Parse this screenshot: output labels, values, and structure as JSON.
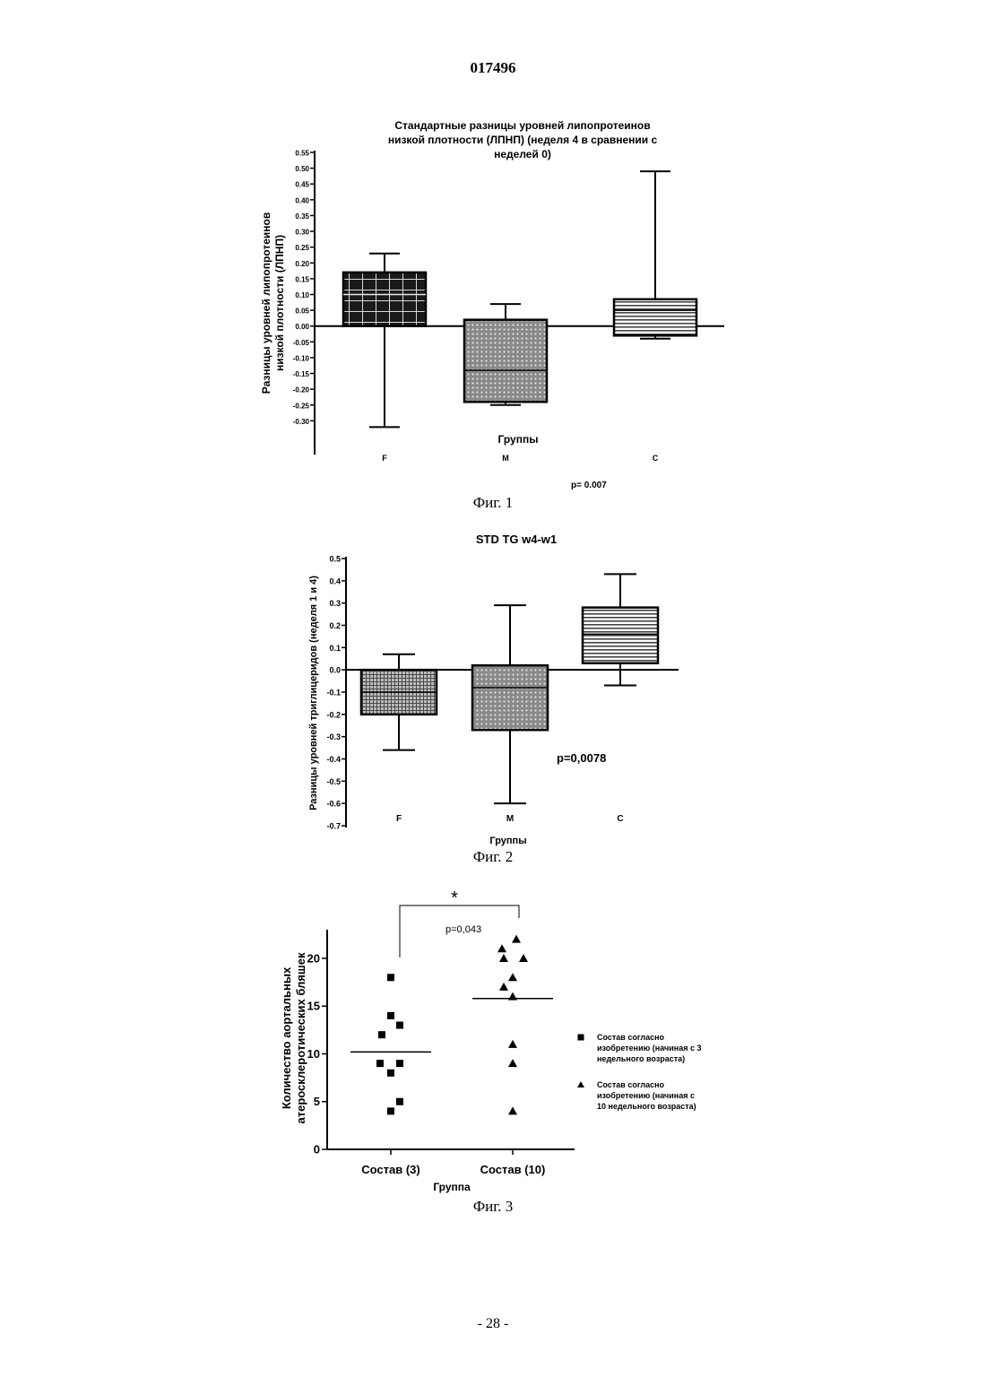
{
  "document": {
    "number": "017496",
    "page_number": "- 28 -"
  },
  "captions": {
    "fig1": "Фиг. 1",
    "fig2": "Фиг. 2",
    "fig3": "Фиг. 3"
  },
  "chart_data": [
    {
      "type": "box",
      "title": [
        "Стандартные разницы уровней липопротеинов",
        "низкой плотности (ЛПНП) (неделя 4 в сравнении с",
        "неделей 0)"
      ],
      "ylabel": [
        "Разницы уровней липопротеинов",
        "низкой плотности (ЛПНП)"
      ],
      "xlabel": "Группы",
      "ylim": [
        -0.35,
        0.55
      ],
      "yticks": [
        "0.55",
        "0.50",
        "0.45",
        "0.40",
        "0.35",
        "0.30",
        "0.25",
        "0.20",
        "0.15",
        "0.10",
        "0.05",
        "0.00",
        "-0.05",
        "-0.10",
        "-0.15",
        "-0.20",
        "-0.25",
        "-0.30"
      ],
      "categories": [
        "F",
        "M",
        "C"
      ],
      "boxes": [
        {
          "group": "F",
          "min": -0.32,
          "q1": 0.0,
          "median": 0.1,
          "q3": 0.17,
          "max": 0.23,
          "pattern": "dark-grid"
        },
        {
          "group": "M",
          "min": -0.25,
          "q1": -0.24,
          "median": -0.14,
          "q3": 0.02,
          "max": 0.07,
          "pattern": "dots"
        },
        {
          "group": "C",
          "min": -0.04,
          "q1": -0.03,
          "median": 0.05,
          "q3": 0.085,
          "max": 0.49,
          "pattern": "hlines"
        }
      ],
      "annotation": "p= 0.007"
    },
    {
      "type": "box",
      "title": [
        "STD TG w4-w1"
      ],
      "ylabel": [
        "Разницы уровней триглицеридов (неделя 1 и 4)"
      ],
      "xlabel": "Группы",
      "ylim": [
        -0.7,
        0.5
      ],
      "yticks": [
        "0.5",
        "0.4",
        "0.3",
        "0.2",
        "0.1",
        "0.0",
        "-0.1",
        "-0.2",
        "-0.3",
        "-0.4",
        "-0.5",
        "-0.6",
        "-0.7"
      ],
      "categories": [
        "F",
        "M",
        "C"
      ],
      "boxes": [
        {
          "group": "F",
          "min": -0.36,
          "q1": -0.2,
          "median": -0.1,
          "q3": 0.0,
          "max": 0.07,
          "pattern": "dense-grid"
        },
        {
          "group": "M",
          "min": -0.6,
          "q1": -0.27,
          "median": -0.08,
          "q3": 0.02,
          "max": 0.29,
          "pattern": "dots"
        },
        {
          "group": "C",
          "min": -0.07,
          "q1": 0.03,
          "median": 0.16,
          "q3": 0.28,
          "max": 0.43,
          "pattern": "hlines"
        }
      ],
      "annotation": "p=0,0078"
    },
    {
      "type": "scatter",
      "ylabel": [
        "Количество аортальных",
        "атеросклеротических бляшек"
      ],
      "xlabel": "Группа",
      "ylim": [
        0,
        23
      ],
      "yticks": [
        "0",
        "5",
        "10",
        "15",
        "20"
      ],
      "categories": [
        "Состав (3)",
        "Состав (10)"
      ],
      "series": [
        {
          "name": "Состав согласно изобретению (начиная с 3 недельного возраста)",
          "legend_lines": [
            "Состав согласно",
            "изобретению (начиная с 3",
            "недельного возраста)"
          ],
          "marker": "square",
          "values": [
            18,
            14,
            13,
            12,
            9,
            9,
            8,
            5,
            4
          ],
          "mean": 10.2
        },
        {
          "name": "Состав согласно изобретению (начиная с 10 недельного возраста)",
          "legend_lines": [
            "Состав согласно",
            "изобретению (начиная с",
            "10 недельного возраста)"
          ],
          "marker": "triangle",
          "values": [
            22,
            21,
            20,
            20,
            18,
            17,
            16,
            11,
            9,
            4
          ],
          "mean": 15.8
        }
      ],
      "significance": "*",
      "annotation": "p=0,043"
    }
  ]
}
